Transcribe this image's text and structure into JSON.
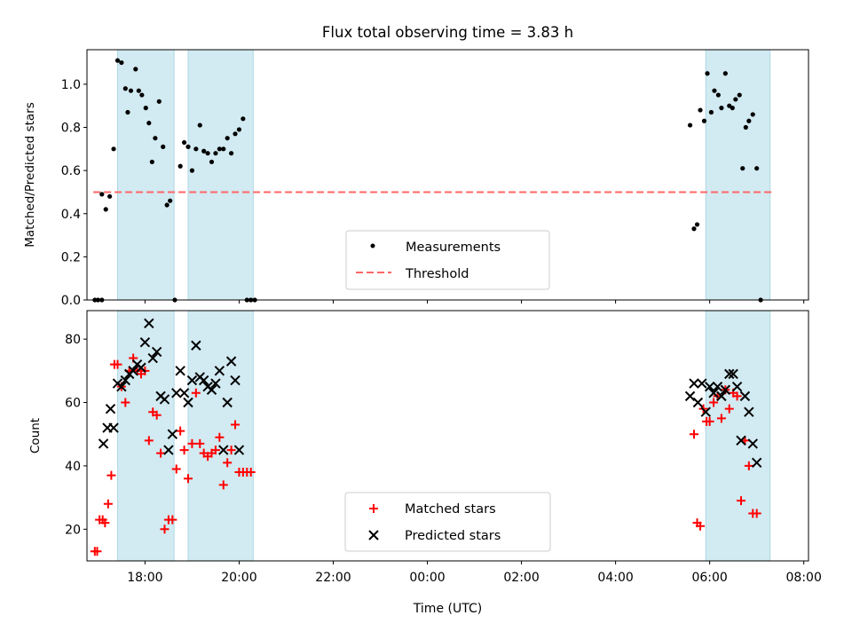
{
  "title": "Flux total observing time = 3.83 h",
  "colors": {
    "shade": "#add8e6",
    "measurement": "#000000",
    "threshold": "#ff6666",
    "matched": "#ff0000",
    "predicted": "#000000"
  },
  "chart_data": [
    {
      "type": "scatter",
      "ylabel": "Matched/Predicted stars",
      "xlim": [
        "16:46",
        "08:06"
      ],
      "ylim": [
        0,
        1.16
      ],
      "yticks": [
        "0.0",
        "0.2",
        "0.4",
        "0.6",
        "0.8",
        "1.0"
      ],
      "ytick_values": [
        0,
        0.2,
        0.4,
        0.6,
        0.8,
        1.0
      ],
      "shaded_intervals": [
        [
          "17:25",
          "18:37"
        ],
        [
          "18:55",
          "20:18"
        ],
        [
          "05:55",
          "07:17"
        ]
      ],
      "threshold": 0.5,
      "legend_position": "lower-center",
      "legend": [
        "Measurements",
        "Threshold"
      ],
      "series": [
        {
          "name": "Measurements",
          "marker": "dot",
          "points": [
            [
              "16:56",
              0.0
            ],
            [
              "17:00",
              0.0
            ],
            [
              "17:05",
              0.0
            ],
            [
              "17:05",
              0.49
            ],
            [
              "17:10",
              0.42
            ],
            [
              "17:15",
              0.48
            ],
            [
              "17:20",
              0.7
            ],
            [
              "17:25",
              1.11
            ],
            [
              "17:30",
              1.1
            ],
            [
              "17:35",
              0.98
            ],
            [
              "17:38",
              0.87
            ],
            [
              "17:42",
              0.97
            ],
            [
              "17:48",
              1.07
            ],
            [
              "17:52",
              0.97
            ],
            [
              "17:56",
              0.95
            ],
            [
              "18:01",
              0.89
            ],
            [
              "18:05",
              0.82
            ],
            [
              "18:09",
              0.64
            ],
            [
              "18:13",
              0.75
            ],
            [
              "18:18",
              0.92
            ],
            [
              "18:23",
              0.71
            ],
            [
              "18:28",
              0.44
            ],
            [
              "18:32",
              0.46
            ],
            [
              "18:38",
              0.0
            ],
            [
              "18:45",
              0.62
            ],
            [
              "18:50",
              0.73
            ],
            [
              "18:55",
              0.71
            ],
            [
              "19:00",
              0.6
            ],
            [
              "19:05",
              0.7
            ],
            [
              "19:10",
              0.81
            ],
            [
              "19:15",
              0.69
            ],
            [
              "19:20",
              0.68
            ],
            [
              "19:25",
              0.64
            ],
            [
              "19:30",
              0.68
            ],
            [
              "19:35",
              0.7
            ],
            [
              "19:40",
              0.7
            ],
            [
              "19:45",
              0.75
            ],
            [
              "19:50",
              0.68
            ],
            [
              "19:55",
              0.77
            ],
            [
              "20:00",
              0.79
            ],
            [
              "20:05",
              0.84
            ],
            [
              "20:10",
              0.0
            ],
            [
              "20:15",
              0.0
            ],
            [
              "20:20",
              0.0
            ],
            [
              "05:35",
              0.81
            ],
            [
              "05:40",
              0.33
            ],
            [
              "05:44",
              0.35
            ],
            [
              "05:48",
              0.88
            ],
            [
              "05:53",
              0.83
            ],
            [
              "05:57",
              1.05
            ],
            [
              "06:02",
              0.87
            ],
            [
              "06:06",
              0.97
            ],
            [
              "06:11",
              0.95
            ],
            [
              "06:15",
              0.89
            ],
            [
              "06:20",
              1.05
            ],
            [
              "06:25",
              0.9
            ],
            [
              "06:29",
              0.89
            ],
            [
              "06:33",
              0.93
            ],
            [
              "06:38",
              0.95
            ],
            [
              "06:42",
              0.61
            ],
            [
              "06:46",
              0.8
            ],
            [
              "06:50",
              0.83
            ],
            [
              "06:55",
              0.86
            ],
            [
              "07:00",
              0.61
            ],
            [
              "07:05",
              0.0
            ]
          ]
        },
        {
          "name": "Threshold",
          "style": "dashed",
          "points": [
            [
              "16:54",
              0.5
            ],
            [
              "07:20",
              0.5
            ]
          ]
        }
      ]
    },
    {
      "type": "scatter",
      "xlabel": "Time (UTC)",
      "ylabel": "Count",
      "xlim": [
        "16:46",
        "08:06"
      ],
      "ylim": [
        10,
        89
      ],
      "xticks": [
        "18:00",
        "20:00",
        "22:00",
        "00:00",
        "02:00",
        "04:00",
        "06:00",
        "08:00"
      ],
      "yticks": [
        "20",
        "40",
        "60",
        "80"
      ],
      "ytick_values": [
        20,
        40,
        60,
        80
      ],
      "shaded_intervals": [
        [
          "17:25",
          "18:37"
        ],
        [
          "18:55",
          "20:18"
        ],
        [
          "05:55",
          "07:17"
        ]
      ],
      "legend_position": "lower-center",
      "legend": [
        "Matched stars",
        "Predicted stars"
      ],
      "series": [
        {
          "name": "Matched stars",
          "marker": "plus",
          "points": [
            [
              "16:56",
              13
            ],
            [
              "16:59",
              13
            ],
            [
              "17:02",
              23
            ],
            [
              "17:06",
              23
            ],
            [
              "17:09",
              22
            ],
            [
              "17:13",
              28
            ],
            [
              "17:17",
              37
            ],
            [
              "17:21",
              72
            ],
            [
              "17:25",
              72
            ],
            [
              "17:30",
              65
            ],
            [
              "17:35",
              60
            ],
            [
              "17:40",
              70
            ],
            [
              "17:45",
              74
            ],
            [
              "17:50",
              70
            ],
            [
              "17:55",
              69
            ],
            [
              "18:00",
              70
            ],
            [
              "18:05",
              48
            ],
            [
              "18:10",
              57
            ],
            [
              "18:15",
              56
            ],
            [
              "18:20",
              44
            ],
            [
              "18:25",
              20
            ],
            [
              "18:30",
              23
            ],
            [
              "18:35",
              23
            ],
            [
              "18:40",
              39
            ],
            [
              "18:45",
              51
            ],
            [
              "18:50",
              45
            ],
            [
              "18:55",
              36
            ],
            [
              "19:00",
              47
            ],
            [
              "19:05",
              63
            ],
            [
              "19:10",
              47
            ],
            [
              "19:15",
              44
            ],
            [
              "19:20",
              43
            ],
            [
              "19:25",
              44
            ],
            [
              "19:30",
              45
            ],
            [
              "19:35",
              49
            ],
            [
              "19:40",
              34
            ],
            [
              "19:45",
              41
            ],
            [
              "19:50",
              45
            ],
            [
              "19:55",
              53
            ],
            [
              "20:00",
              38
            ],
            [
              "20:05",
              38
            ],
            [
              "20:10",
              38
            ],
            [
              "20:15",
              38
            ],
            [
              "05:40",
              50
            ],
            [
              "05:44",
              22
            ],
            [
              "05:48",
              21
            ],
            [
              "05:52",
              58
            ],
            [
              "05:56",
              54
            ],
            [
              "06:00",
              54
            ],
            [
              "06:05",
              60
            ],
            [
              "06:10",
              62
            ],
            [
              "06:15",
              55
            ],
            [
              "06:20",
              64
            ],
            [
              "06:25",
              58
            ],
            [
              "06:30",
              63
            ],
            [
              "06:35",
              62
            ],
            [
              "06:40",
              29
            ],
            [
              "06:45",
              48
            ],
            [
              "06:50",
              40
            ],
            [
              "06:55",
              25
            ],
            [
              "07:00",
              25
            ]
          ]
        },
        {
          "name": "Predicted stars",
          "marker": "x",
          "points": [
            [
              "17:07",
              47
            ],
            [
              "17:12",
              52
            ],
            [
              "17:16",
              58
            ],
            [
              "17:20",
              52
            ],
            [
              "17:25",
              66
            ],
            [
              "17:30",
              65
            ],
            [
              "17:35",
              67
            ],
            [
              "17:40",
              69
            ],
            [
              "17:45",
              70
            ],
            [
              "17:50",
              72
            ],
            [
              "17:55",
              71
            ],
            [
              "18:00",
              79
            ],
            [
              "18:05",
              85
            ],
            [
              "18:10",
              74
            ],
            [
              "18:15",
              76
            ],
            [
              "18:20",
              62
            ],
            [
              "18:25",
              61
            ],
            [
              "18:30",
              45
            ],
            [
              "18:35",
              50
            ],
            [
              "18:40",
              63
            ],
            [
              "18:45",
              70
            ],
            [
              "18:50",
              63
            ],
            [
              "18:55",
              60
            ],
            [
              "19:00",
              67
            ],
            [
              "19:05",
              78
            ],
            [
              "19:10",
              68
            ],
            [
              "19:15",
              67
            ],
            [
              "19:20",
              65
            ],
            [
              "19:25",
              64
            ],
            [
              "19:30",
              66
            ],
            [
              "19:35",
              70
            ],
            [
              "19:40",
              45
            ],
            [
              "19:45",
              60
            ],
            [
              "19:50",
              73
            ],
            [
              "19:55",
              67
            ],
            [
              "20:00",
              45
            ],
            [
              "05:35",
              62
            ],
            [
              "05:40",
              66
            ],
            [
              "05:45",
              60
            ],
            [
              "05:50",
              66
            ],
            [
              "05:55",
              57
            ],
            [
              "06:00",
              65
            ],
            [
              "06:05",
              63
            ],
            [
              "06:10",
              65
            ],
            [
              "06:15",
              62
            ],
            [
              "06:20",
              64
            ],
            [
              "06:25",
              69
            ],
            [
              "06:30",
              69
            ],
            [
              "06:35",
              65
            ],
            [
              "06:40",
              48
            ],
            [
              "06:45",
              62
            ],
            [
              "06:50",
              57
            ],
            [
              "06:55",
              47
            ],
            [
              "07:00",
              41
            ]
          ]
        }
      ]
    }
  ]
}
